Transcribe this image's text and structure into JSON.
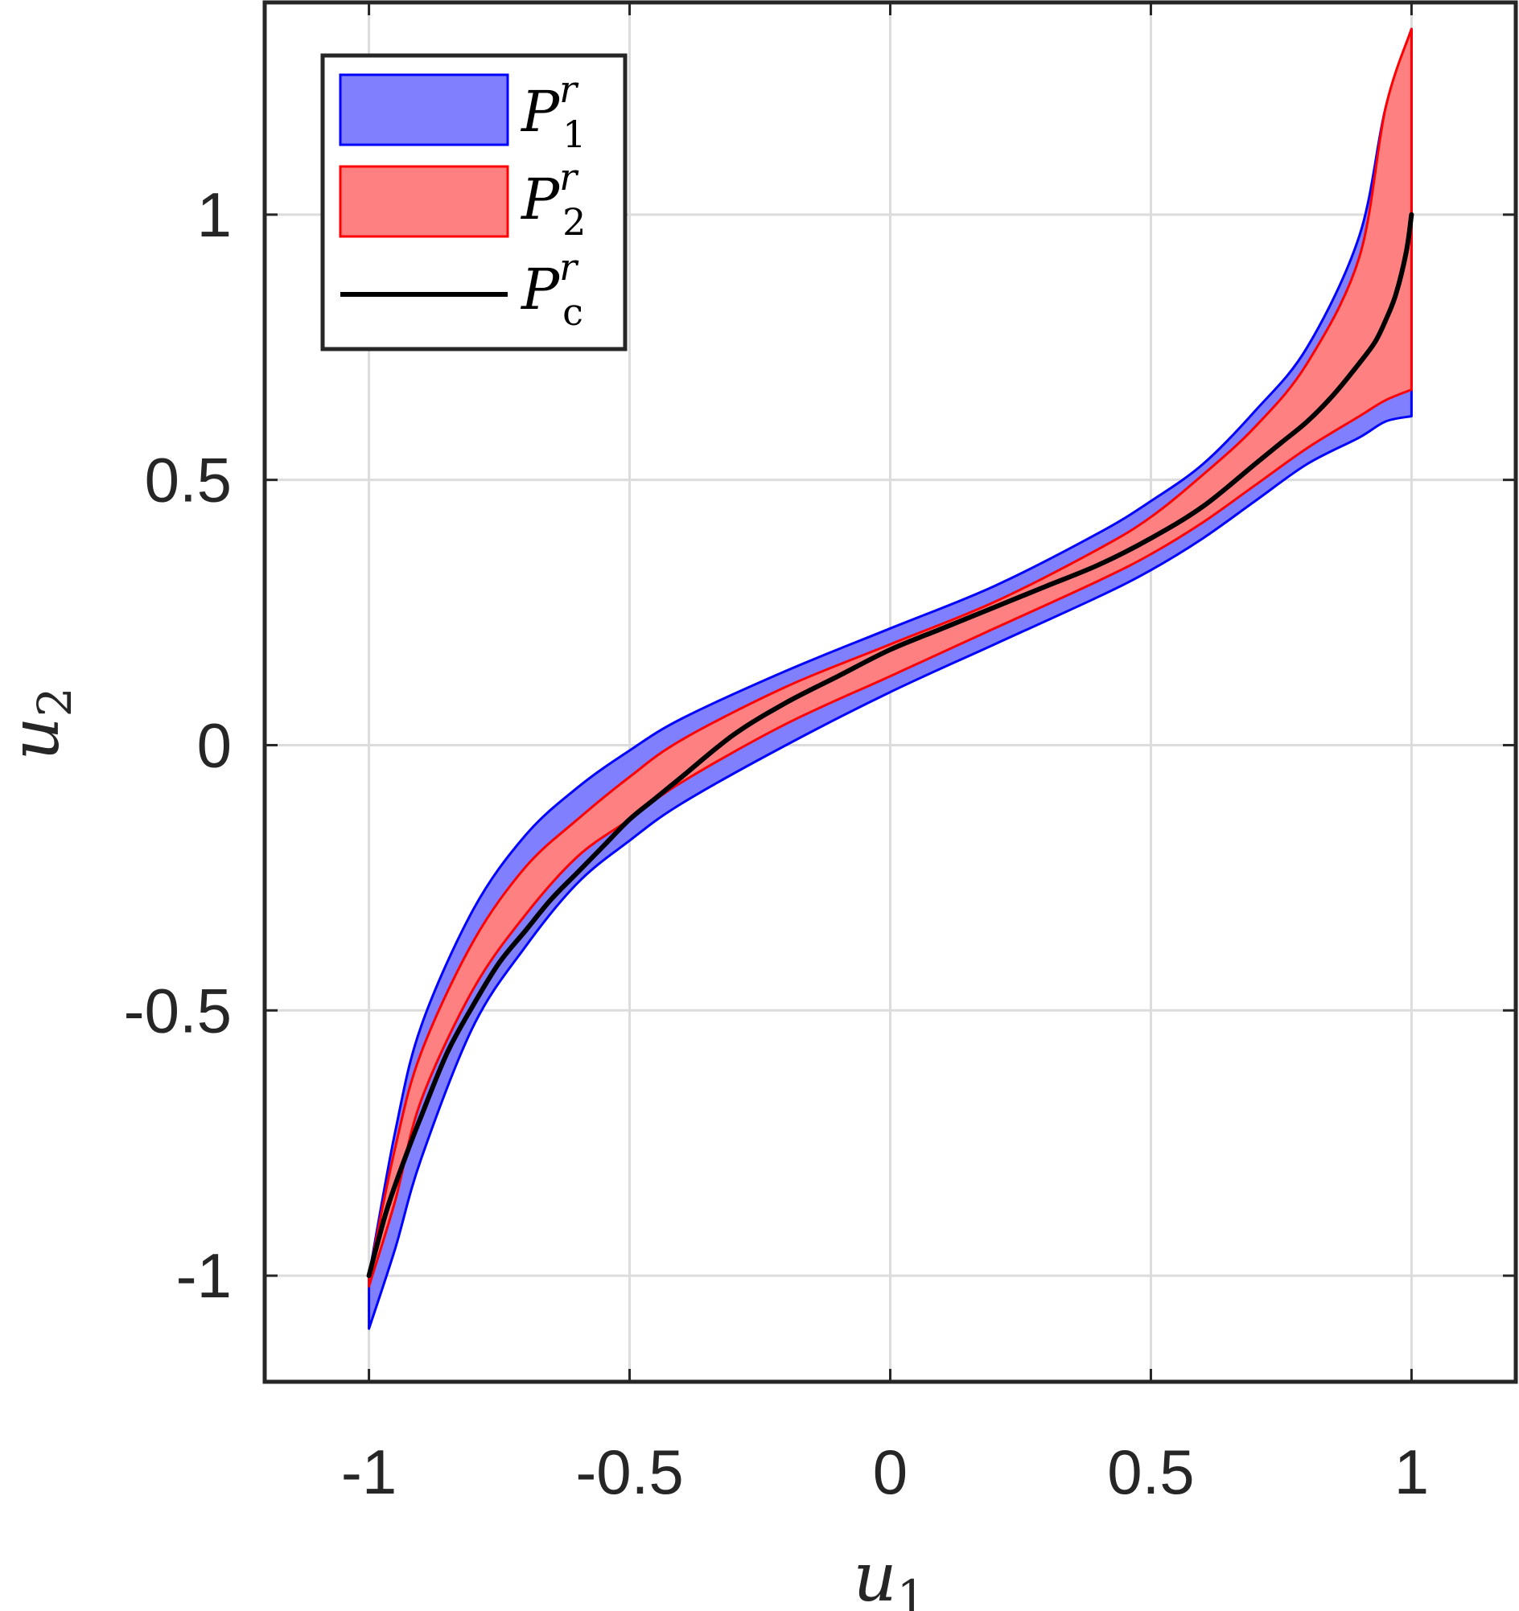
{
  "chart_data": {
    "type": "area",
    "xlabel": {
      "base": "u",
      "sub": "1"
    },
    "ylabel": {
      "base": "u",
      "sub": "2"
    },
    "xlim": [
      -1.2,
      1.2
    ],
    "ylim": [
      -1.2,
      1.4
    ],
    "xticks": [
      -1,
      -0.5,
      0,
      0.5,
      1
    ],
    "xtick_labels": [
      "-1",
      "-0.5",
      "0",
      "0.5",
      "1"
    ],
    "yticks": [
      -1,
      -0.5,
      0,
      0.5,
      1
    ],
    "ytick_labels": [
      "-1",
      "-0.5",
      "0",
      "0.5",
      "1"
    ],
    "grid": true,
    "legend_position": "top-left",
    "series": [
      {
        "name": {
          "base": "P",
          "sup": "r",
          "sub": "1"
        },
        "kind": "band",
        "fill": "#8080ff",
        "stroke": "#0000ff",
        "x": [
          -1.0,
          -0.95,
          -0.9,
          -0.8,
          -0.7,
          -0.6,
          -0.5,
          -0.4,
          -0.2,
          0.0,
          0.2,
          0.4,
          0.5,
          0.6,
          0.7,
          0.8,
          0.9,
          0.95,
          1.0
        ],
        "upper": [
          -1.0,
          -0.73,
          -0.53,
          -0.31,
          -0.17,
          -0.08,
          -0.01,
          0.05,
          0.14,
          0.22,
          0.3,
          0.4,
          0.46,
          0.53,
          0.63,
          0.75,
          0.96,
          1.2,
          1.35
        ],
        "lower": [
          -1.1,
          -0.95,
          -0.78,
          -0.53,
          -0.38,
          -0.26,
          -0.18,
          -0.11,
          0.0,
          0.1,
          0.19,
          0.28,
          0.33,
          0.39,
          0.46,
          0.53,
          0.58,
          0.61,
          0.62
        ]
      },
      {
        "name": {
          "base": "P",
          "sup": "r",
          "sub": "2"
        },
        "kind": "band",
        "fill": "#ff8080",
        "stroke": "#ff0000",
        "x": [
          -1.0,
          -0.95,
          -0.9,
          -0.8,
          -0.7,
          -0.6,
          -0.5,
          -0.4,
          -0.2,
          0.0,
          0.2,
          0.4,
          0.5,
          0.6,
          0.7,
          0.8,
          0.9,
          0.95,
          1.0
        ],
        "upper": [
          -1.0,
          -0.76,
          -0.58,
          -0.37,
          -0.23,
          -0.14,
          -0.06,
          0.01,
          0.11,
          0.19,
          0.27,
          0.37,
          0.43,
          0.51,
          0.6,
          0.72,
          0.92,
          1.2,
          1.35
        ],
        "lower": [
          -1.02,
          -0.86,
          -0.67,
          -0.46,
          -0.32,
          -0.21,
          -0.14,
          -0.07,
          0.04,
          0.13,
          0.22,
          0.31,
          0.36,
          0.42,
          0.49,
          0.56,
          0.62,
          0.65,
          0.67
        ]
      },
      {
        "name": {
          "base": "P",
          "sup": "r",
          "sub": "c"
        },
        "kind": "line",
        "stroke": "#000000",
        "x": [
          -1.0,
          -0.97,
          -0.95,
          -0.92,
          -0.9,
          -0.85,
          -0.8,
          -0.75,
          -0.7,
          -0.65,
          -0.6,
          -0.55,
          -0.5,
          -0.45,
          -0.4,
          -0.3,
          -0.2,
          -0.1,
          0.0,
          0.1,
          0.2,
          0.3,
          0.4,
          0.5,
          0.6,
          0.7,
          0.75,
          0.8,
          0.85,
          0.9,
          0.93,
          0.95,
          0.97,
          0.99,
          1.0
        ],
        "y": [
          -1.0,
          -0.89,
          -0.83,
          -0.75,
          -0.7,
          -0.58,
          -0.49,
          -0.41,
          -0.35,
          -0.29,
          -0.24,
          -0.19,
          -0.14,
          -0.1,
          -0.06,
          0.02,
          0.08,
          0.13,
          0.18,
          0.22,
          0.26,
          0.3,
          0.34,
          0.39,
          0.45,
          0.53,
          0.57,
          0.61,
          0.66,
          0.72,
          0.76,
          0.8,
          0.85,
          0.93,
          1.0
        ]
      }
    ]
  }
}
